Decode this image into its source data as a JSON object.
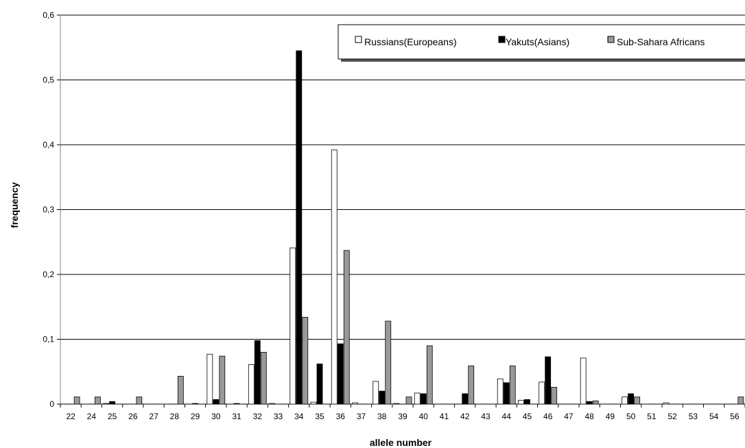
{
  "chart_data": {
    "type": "bar",
    "xlabel": "allele number",
    "ylabel": "frequency",
    "ylim": [
      0,
      0.6
    ],
    "y_ticks": [
      "0",
      "0,1",
      "0,2",
      "0,3",
      "0,4",
      "0,5",
      "0,6"
    ],
    "grid": "horizontal",
    "legend_position": "top-right",
    "categories": [
      "22",
      "24",
      "25",
      "26",
      "27",
      "28",
      "29",
      "30",
      "31",
      "32",
      "33",
      "34",
      "35",
      "36",
      "37",
      "38",
      "39",
      "40",
      "41",
      "42",
      "43",
      "44",
      "45",
      "46",
      "47",
      "48",
      "49",
      "50",
      "51",
      "52",
      "53",
      "54",
      "56"
    ],
    "series": [
      {
        "name": "Russians(Europeans)",
        "color": "#ffffff",
        "values": [
          0,
          0,
          0.001,
          0,
          0,
          0,
          0,
          0.077,
          0,
          0.061,
          0.001,
          0.241,
          0.003,
          0.392,
          0.002,
          0.035,
          0.001,
          0.017,
          0,
          0,
          0,
          0.039,
          0.006,
          0.034,
          0,
          0.071,
          0,
          0.011,
          0,
          0.002,
          0,
          0,
          0
        ]
      },
      {
        "name": "Yakuts(Asians)",
        "color": "#000000",
        "values": [
          0,
          0,
          0.004,
          0,
          0,
          0,
          0.001,
          0.007,
          0.001,
          0.098,
          0,
          0.545,
          0.062,
          0.093,
          0,
          0.02,
          0,
          0.016,
          0,
          0.016,
          0,
          0.033,
          0.007,
          0.073,
          0,
          0.004,
          0,
          0.016,
          0,
          0,
          0,
          0,
          0
        ]
      },
      {
        "name": "Sub-Sahara Africans",
        "color": "#999999",
        "values": [
          0.011,
          0.011,
          0,
          0.011,
          0,
          0.043,
          0,
          0.074,
          0,
          0.08,
          0,
          0.134,
          0,
          0.237,
          0,
          0.128,
          0.011,
          0.09,
          0,
          0.059,
          0,
          0.059,
          0,
          0.026,
          0,
          0.005,
          0,
          0.011,
          0,
          0,
          0,
          0,
          0.011
        ]
      }
    ]
  }
}
